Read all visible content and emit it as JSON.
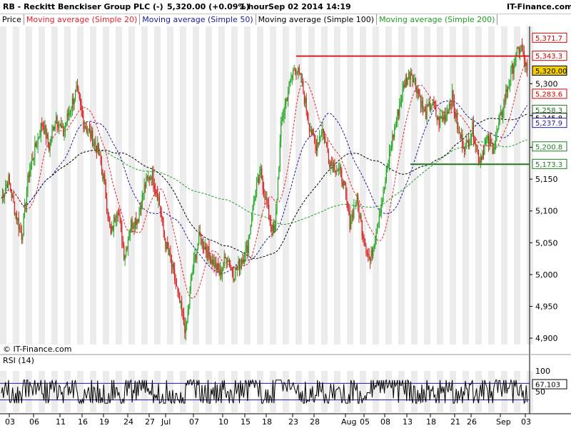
{
  "header": {
    "symbol_title": "RB - Reckitt Benckiser Group PLC (-)",
    "last_price": "5,320.00 (+0.09%)",
    "interval": "1 hour",
    "timestamp": "Sep 02 2014 14:19",
    "brand": "IT-Finance.com"
  },
  "legend": [
    {
      "label": "Price",
      "color": "#000000"
    },
    {
      "label": "Moving average (Simple 20)",
      "color": "#e8202a"
    },
    {
      "label": "Moving average (Simple 50)",
      "color": "#1a1a9c"
    },
    {
      "label": "Moving average (Simple 100)",
      "color": "#000000"
    },
    {
      "label": "Moving average (Simple 200)",
      "color": "#1f9e1f"
    }
  ],
  "watermark": "© IT-Finance.com",
  "rsi": {
    "label": "RSI (14)",
    "value_label": "67.103",
    "axis_ticks": [
      "100",
      "50",
      "0"
    ],
    "upper_level": 70,
    "lower_level": 30
  },
  "chart_data": {
    "type": "candlestick",
    "y_axis_ticks": [
      "5,300",
      "5,250",
      "5,200",
      "5,150",
      "5,100",
      "5,050",
      "5,000",
      "4,950",
      "4,900"
    ],
    "y_range": [
      4890,
      5390
    ],
    "x_axis_ticks": [
      "03",
      "06",
      "11",
      "16",
      "19",
      "24",
      "27",
      "Jul",
      "07",
      "10",
      "15",
      "18",
      "23",
      "28",
      "Aug",
      "05",
      "08",
      "13",
      "18",
      "21",
      "26",
      "Sep",
      "03"
    ],
    "price_tags": [
      {
        "label": "5,371.7",
        "value": 5371.7,
        "color": "#cc0000",
        "fill": "#ffffff"
      },
      {
        "label": "5,343.3",
        "value": 5343.3,
        "color": "#cc0000",
        "fill": "#ffffff"
      },
      {
        "label": "5,320.00",
        "value": 5320.0,
        "color": "#000000",
        "fill": "#f5d000"
      },
      {
        "label": "5,283.6",
        "value": 5283.6,
        "color": "#cc0000",
        "fill": "#ffffff"
      },
      {
        "label": "5,258.3",
        "value": 5258.3,
        "color": "#1f7a1f",
        "fill": "#ffffff"
      },
      {
        "label": "5,245.8",
        "value": 5245.8,
        "color": "#000000",
        "fill": "#ffffff"
      },
      {
        "label": "5,237.9",
        "value": 5237.9,
        "color": "#1a1a9c",
        "fill": "#ffffff"
      },
      {
        "label": "5,200.8",
        "value": 5200.8,
        "color": "#1f7a1f",
        "fill": "#ffffff"
      },
      {
        "label": "5,173.3",
        "value": 5173.3,
        "color": "#1f7a1f",
        "fill": "#ffffff"
      }
    ],
    "resistance_level": 5343.3,
    "support_level": 5173.3,
    "key_points": [
      5120,
      5150,
      5100,
      5060,
      5160,
      5200,
      5240,
      5200,
      5250,
      5220,
      5260,
      5290,
      5240,
      5220,
      5200,
      5150,
      5060,
      5110,
      5030,
      5080,
      5090,
      5140,
      5160,
      5120,
      5050,
      5010,
      4960,
      4910,
      5010,
      5060,
      5040,
      5020,
      5000,
      5030,
      5000,
      5020,
      5040,
      5120,
      5160,
      5100,
      5060,
      5240,
      5290,
      5330,
      5300,
      5240,
      5200,
      5230,
      5180,
      5170,
      5150,
      5080,
      5120,
      5060,
      5020,
      5080,
      5130,
      5200,
      5250,
      5300,
      5320,
      5290,
      5250,
      5270,
      5240,
      5250,
      5280,
      5220,
      5200,
      5230,
      5180,
      5210,
      5200,
      5240,
      5290,
      5330,
      5360,
      5320
    ]
  }
}
